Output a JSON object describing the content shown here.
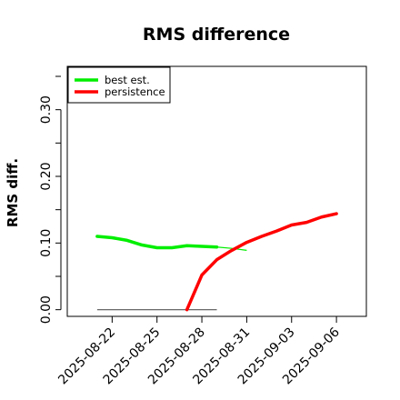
{
  "chart_data": {
    "type": "line",
    "title": "RMS difference",
    "xlabel": "",
    "ylabel": "RMS diff.",
    "x_ticks": [
      "2025-08-22",
      "2025-08-25",
      "2025-08-28",
      "2025-08-31",
      "2025-09-03",
      "2025-09-06"
    ],
    "xlim": [
      "2025-08-19",
      "2025-09-08"
    ],
    "y_ticks": [
      "0.00",
      "0.10",
      "0.20",
      "0.30"
    ],
    "ylim": [
      -0.01,
      0.365
    ],
    "legend_position": "top-left",
    "series": [
      {
        "name": "best est.",
        "color": "#00ee00",
        "points": [
          [
            "2025-08-21",
            0.11
          ],
          [
            "2025-08-22",
            0.108
          ],
          [
            "2025-08-23",
            0.104
          ],
          [
            "2025-08-24",
            0.097
          ],
          [
            "2025-08-25",
            0.093
          ],
          [
            "2025-08-26",
            0.093
          ],
          [
            "2025-08-27",
            0.096
          ],
          [
            "2025-08-28",
            0.095
          ],
          [
            "2025-08-29",
            0.094
          ],
          [
            "2025-08-30",
            0.092
          ],
          [
            "2025-08-31",
            0.089
          ]
        ]
      },
      {
        "name": "persistence",
        "color": "#ff0000",
        "points": [
          [
            "2025-08-27",
            0.0
          ],
          [
            "2025-08-28",
            0.052
          ],
          [
            "2025-08-29",
            0.075
          ],
          [
            "2025-08-30",
            0.089
          ],
          [
            "2025-08-31",
            0.101
          ],
          [
            "2025-09-01",
            0.11
          ],
          [
            "2025-09-02",
            0.118
          ],
          [
            "2025-09-03",
            0.127
          ],
          [
            "2025-09-04",
            0.131
          ],
          [
            "2025-09-05",
            0.139
          ],
          [
            "2025-09-06",
            0.144
          ]
        ]
      }
    ],
    "reference_line": {
      "color": "#555555",
      "points": [
        [
          "2025-08-21",
          0.0
        ],
        [
          "2025-08-29",
          0.0
        ]
      ]
    }
  }
}
